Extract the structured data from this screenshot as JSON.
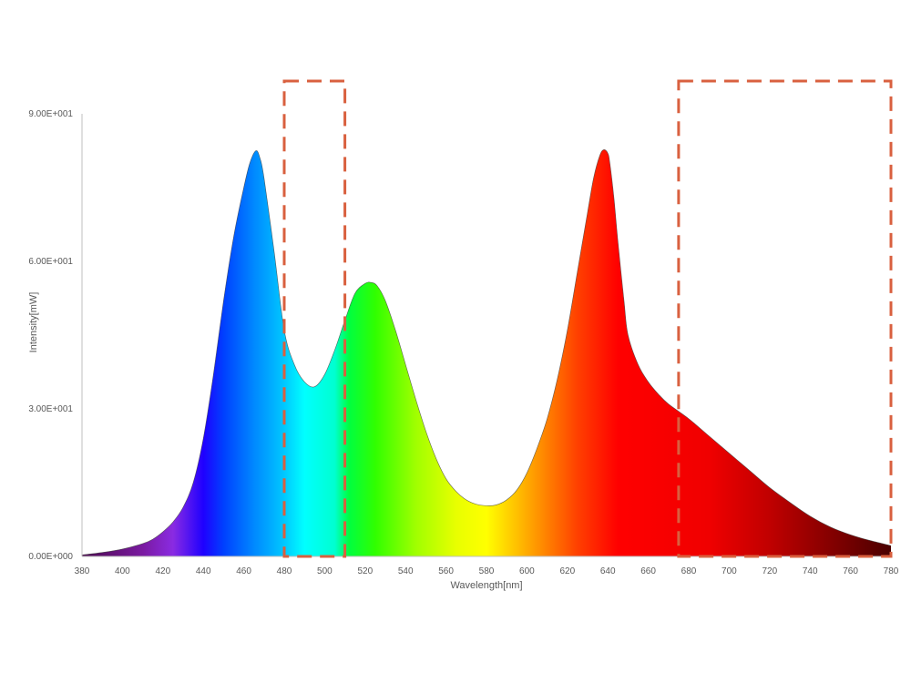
{
  "chart_data": {
    "type": "area",
    "title": "",
    "xlabel": "Wavelength[nm]",
    "ylabel": "Intensity[mW]",
    "xlim": [
      380,
      780
    ],
    "ylim": [
      0,
      90
    ],
    "x_ticks": [
      "380",
      "400",
      "420",
      "440",
      "460",
      "480",
      "500",
      "520",
      "540",
      "560",
      "580",
      "600",
      "620",
      "640",
      "660",
      "680",
      "700",
      "720",
      "740",
      "760",
      "780"
    ],
    "y_ticks": [
      "0.00E+000",
      "3.00E+001",
      "6.00E+001",
      "9.00E+001"
    ],
    "grid": false,
    "legend": "none",
    "fill": "visible-spectrum gradient",
    "series": [
      {
        "x": [
          380,
          390,
          400,
          410,
          415,
          420,
          425,
          430,
          435,
          440,
          445,
          450,
          455,
          460,
          463,
          466,
          468,
          470,
          475,
          480,
          485,
          490,
          495,
          500,
          505,
          510,
          515,
          520,
          523,
          526,
          530,
          535,
          540,
          545,
          550,
          555,
          560,
          565,
          570,
          575,
          580,
          585,
          590,
          595,
          600,
          605,
          610,
          615,
          620,
          625,
          630,
          633,
          636,
          638,
          640,
          641,
          643,
          645,
          648,
          650,
          655,
          660,
          665,
          670,
          680,
          690,
          700,
          710,
          720,
          730,
          740,
          750,
          760,
          770,
          780
        ],
        "y": [
          0.3,
          0.8,
          1.5,
          2.6,
          3.5,
          5.0,
          7.0,
          10.0,
          15.0,
          24.0,
          37.0,
          52.0,
          65.0,
          75.0,
          80.0,
          82.5,
          81.0,
          77.0,
          62.0,
          46.0,
          39.0,
          35.5,
          34.5,
          37.0,
          42.0,
          48.0,
          53.5,
          55.5,
          55.7,
          55.0,
          52.0,
          46.0,
          39.0,
          32.0,
          25.5,
          20.0,
          15.8,
          13.2,
          11.5,
          10.6,
          10.3,
          10.5,
          11.5,
          13.5,
          17.0,
          22.0,
          28.0,
          36.0,
          46.0,
          58.0,
          70.0,
          77.0,
          81.5,
          82.7,
          82.0,
          80.0,
          73.0,
          64.0,
          52.0,
          45.0,
          39.0,
          35.5,
          33.0,
          31.0,
          28.0,
          24.5,
          21.0,
          17.5,
          14.0,
          11.0,
          8.2,
          6.0,
          4.4,
          3.2,
          2.2
        ]
      }
    ]
  },
  "highlight_boxes": [
    {
      "x_range": [
        480,
        510
      ]
    },
    {
      "x_range": [
        675,
        780
      ]
    }
  ],
  "colors": {
    "axis": "#bfbfbf",
    "text": "#595959",
    "highlight_box": "#d9603f",
    "curve_outline": "#404040"
  }
}
